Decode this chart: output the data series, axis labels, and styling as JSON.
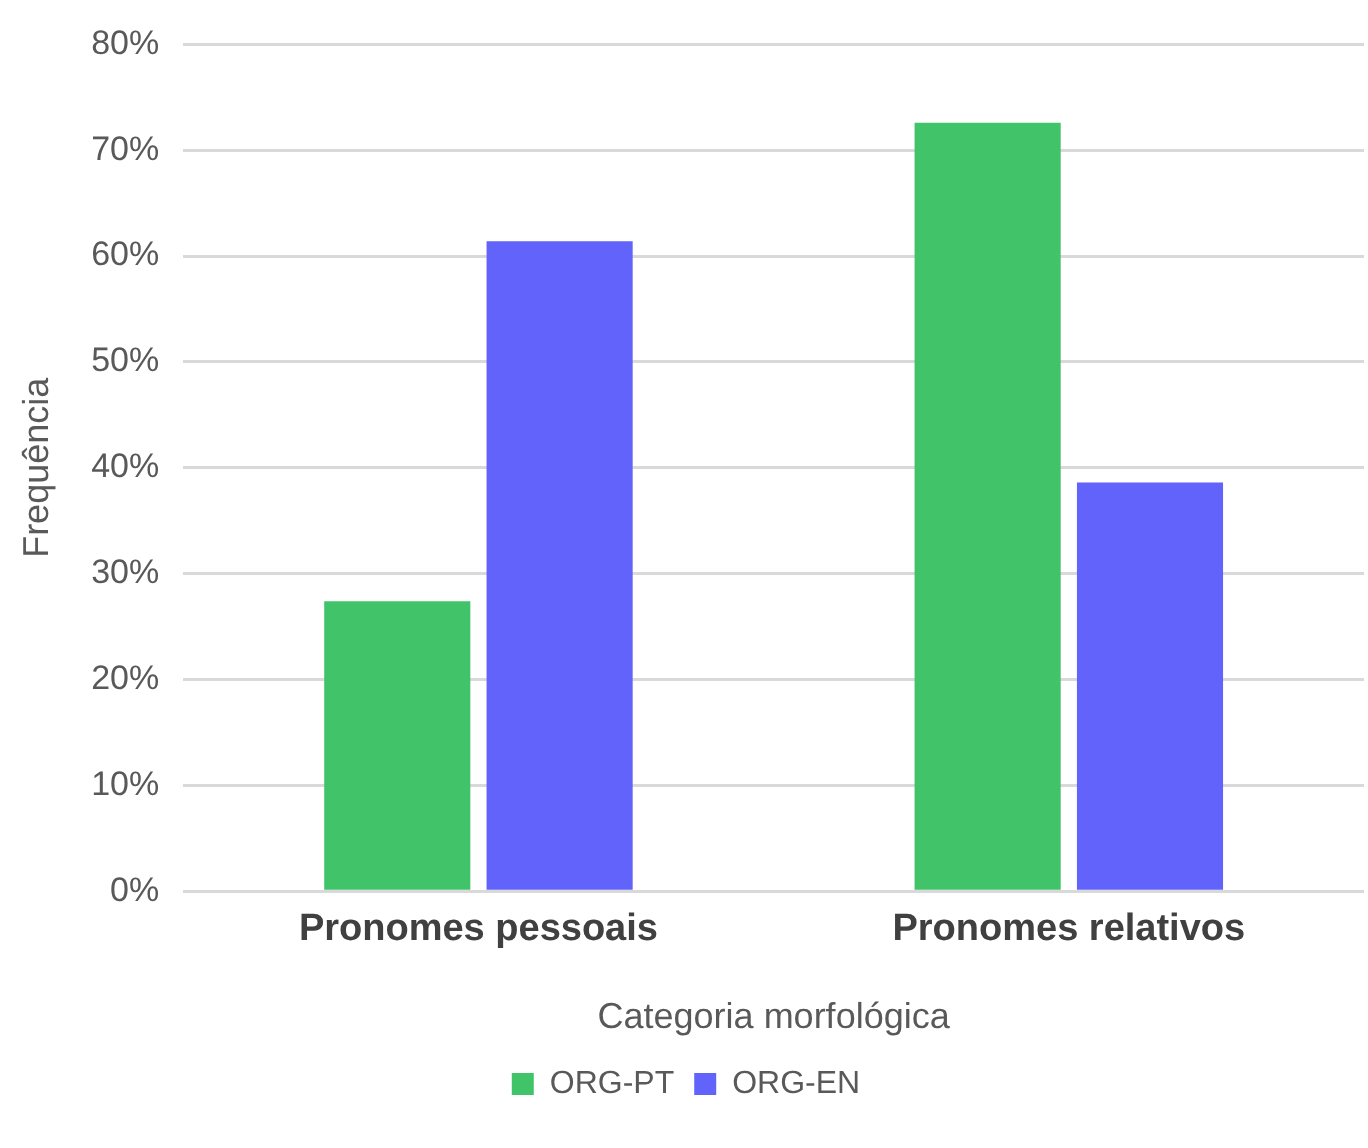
{
  "chart_data": {
    "type": "bar",
    "xlabel": "Categoria morfológica",
    "ylabel": "Frequência",
    "categories": [
      "Pronomes pessoais",
      "Pronomes relativos"
    ],
    "series": [
      {
        "name": "ORG-PT",
        "color": "#41c36a",
        "values": [
          27.4,
          72.6
        ]
      },
      {
        "name": "ORG-EN",
        "color": "#6163fb",
        "values": [
          61.4,
          38.6
        ]
      }
    ],
    "ylim": [
      0,
      80
    ],
    "yticks": [
      {
        "value": 0,
        "label": "0%"
      },
      {
        "value": 10,
        "label": "10%"
      },
      {
        "value": 20,
        "label": "20%"
      },
      {
        "value": 30,
        "label": "30%"
      },
      {
        "value": 40,
        "label": "40%"
      },
      {
        "value": 50,
        "label": "50%"
      },
      {
        "value": 60,
        "label": "60%"
      },
      {
        "value": 70,
        "label": "70%"
      },
      {
        "value": 80,
        "label": "80%"
      }
    ],
    "grid": "y",
    "legend": "bottom"
  }
}
